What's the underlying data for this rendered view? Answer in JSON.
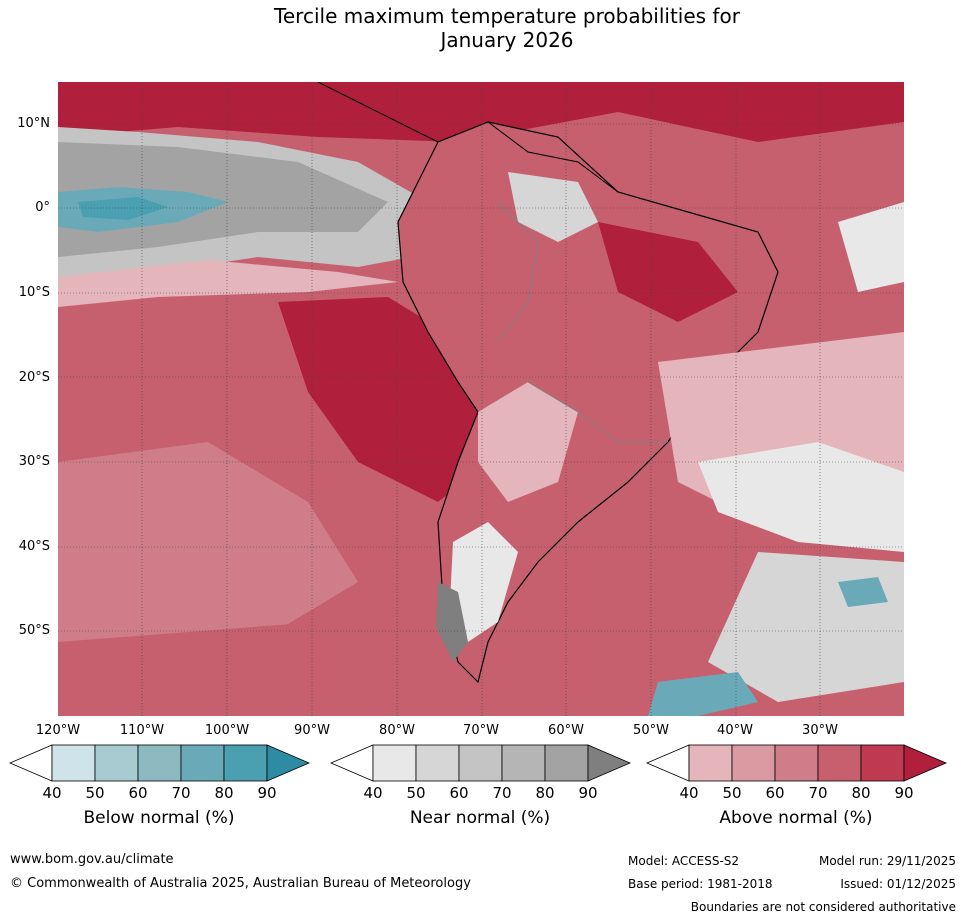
{
  "title": "Tercile maximum temperature probabilities for",
  "subtitle": "January 2026",
  "map": {
    "lat_labels": [
      "10°N",
      "0°",
      "10°S",
      "20°S",
      "30°S",
      "40°S",
      "50°S"
    ],
    "lon_labels": [
      "120°W",
      "110°W",
      "100°W",
      "90°W",
      "80°W",
      "70°W",
      "60°W",
      "50°W",
      "40°W",
      "30°W"
    ]
  },
  "colorbars": [
    {
      "title": "Below normal (%)",
      "ticks": [
        "40",
        "50",
        "60",
        "70",
        "80",
        "90"
      ],
      "colors": [
        "#ffffff",
        "#cfe4ea",
        "#a8cad1",
        "#8db9c1",
        "#6aaab8",
        "#4a9fb0",
        "#2d8ca3"
      ]
    },
    {
      "title": "Near normal (%)",
      "ticks": [
        "40",
        "50",
        "60",
        "70",
        "80",
        "90"
      ],
      "colors": [
        "#ffffff",
        "#e8e8e8",
        "#d6d6d6",
        "#c4c4c4",
        "#b5b5b5",
        "#a3a3a3",
        "#7f7f7f"
      ]
    },
    {
      "title": "Above normal (%)",
      "ticks": [
        "40",
        "50",
        "60",
        "70",
        "80",
        "90"
      ],
      "colors": [
        "#ffffff",
        "#e4b5bb",
        "#d99aa2",
        "#cf7d88",
        "#c6606f",
        "#bf3a51",
        "#b01f3c"
      ]
    }
  ],
  "footer": {
    "website": "www.bom.gov.au/climate",
    "copyright": "© Commonwealth of Australia 2025, Australian Bureau of Meteorology",
    "model": "Model: ACCESS-S2",
    "base_period": "Base period: 1981-2018",
    "model_run": "Model run: 29/11/2025",
    "issued": "Issued: 01/12/2025",
    "disclaimer": "Boundaries are not considered authoritative"
  }
}
